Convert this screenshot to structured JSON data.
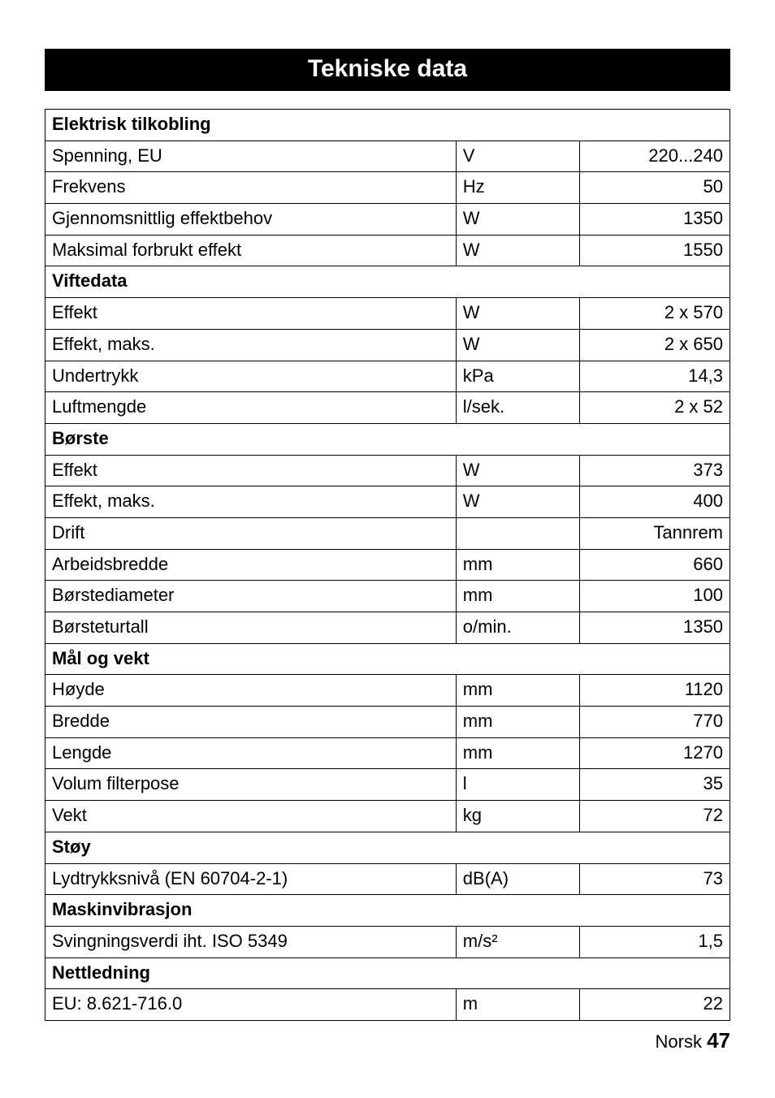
{
  "title": "Tekniske data",
  "sections": [
    {
      "header": "Elektrisk tilkobling",
      "rows": [
        {
          "label": "Spenning, EU",
          "unit": "V",
          "value": "220...240"
        },
        {
          "label": "Frekvens",
          "unit": "Hz",
          "value": "50"
        },
        {
          "label": "Gjennomsnittlig effektbehov",
          "unit": "W",
          "value": "1350"
        },
        {
          "label": "Maksimal forbrukt effekt",
          "unit": "W",
          "value": "1550"
        }
      ]
    },
    {
      "header": "Viftedata",
      "rows": [
        {
          "label": "Effekt",
          "unit": "W",
          "value": "2 x 570"
        },
        {
          "label": "Effekt, maks.",
          "unit": "W",
          "value": "2 x 650"
        },
        {
          "label": "Undertrykk",
          "unit": "kPa",
          "value": "14,3"
        },
        {
          "label": "Luftmengde",
          "unit": "l/sek.",
          "value": "2 x 52"
        }
      ]
    },
    {
      "header": "Børste",
      "rows": [
        {
          "label": "Effekt",
          "unit": "W",
          "value": "373"
        },
        {
          "label": "Effekt, maks.",
          "unit": "W",
          "value": "400"
        },
        {
          "label": "Drift",
          "unit": "",
          "value": "Tannrem"
        },
        {
          "label": "Arbeidsbredde",
          "unit": "mm",
          "value": "660"
        },
        {
          "label": "Børstediameter",
          "unit": "mm",
          "value": "100"
        },
        {
          "label": "Børsteturtall",
          "unit": "o/min.",
          "value": "1350"
        }
      ]
    },
    {
      "header": "Mål og vekt",
      "rows": [
        {
          "label": "Høyde",
          "unit": "mm",
          "value": "1120"
        },
        {
          "label": "Bredde",
          "unit": "mm",
          "value": "770"
        },
        {
          "label": "Lengde",
          "unit": "mm",
          "value": "1270"
        },
        {
          "label": "Volum filterpose",
          "unit": "l",
          "value": "35"
        },
        {
          "label": "Vekt",
          "unit": "kg",
          "value": "72"
        }
      ]
    },
    {
      "header": "Støy",
      "rows": [
        {
          "label": "Lydtrykksnivå (EN 60704-2-1)",
          "unit": "dB(A)",
          "value": "73"
        }
      ]
    },
    {
      "header": "Maskinvibrasjon",
      "rows": [
        {
          "label": "Svingningsverdi iht. ISO 5349",
          "unit": "m/s²",
          "value": "1,5"
        }
      ]
    },
    {
      "header": "Nettledning",
      "rows": [
        {
          "label": "EU: 8.621-716.0",
          "unit": "m",
          "value": "22"
        }
      ]
    }
  ],
  "footer_lang": "Norsk",
  "footer_page": "47"
}
